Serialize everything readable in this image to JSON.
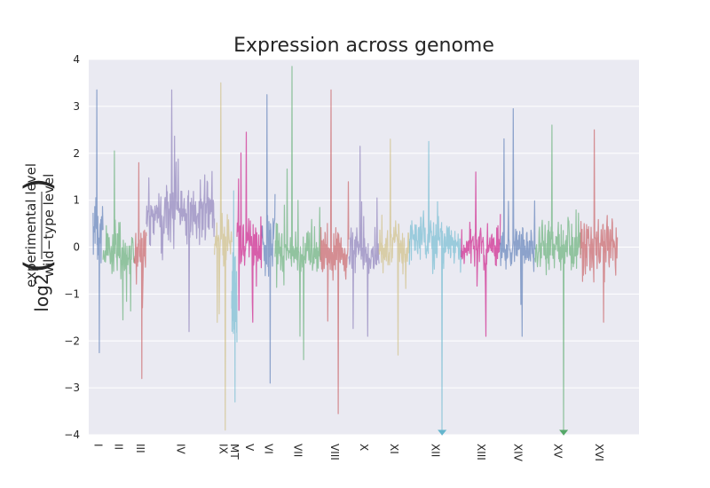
{
  "chart_data": {
    "type": "line",
    "title": "Expression across genome",
    "ylabel": {
      "prefix": "log2",
      "numerator": "experimental level",
      "denominator": "wild−type level"
    },
    "ylim": [
      -4,
      4
    ],
    "yticks": [
      -4,
      -3,
      -2,
      -1,
      0,
      1,
      2,
      3,
      4
    ],
    "ytick_labels": [
      "−4",
      "−3",
      "−2",
      "−1",
      "0",
      "1",
      "2",
      "3",
      "4"
    ],
    "grid": true,
    "legend": "none",
    "x_categories": [
      "I",
      "II",
      "III",
      "IV",
      "IX",
      "MT",
      "V",
      "VI",
      "VII",
      "VIII",
      "X",
      "XI",
      "XII",
      "XIII",
      "XIV",
      "XV",
      "XVI"
    ],
    "series": [
      {
        "chrom": "I",
        "color": "#4c72b0",
        "x_range": [
          0,
          0.23
        ],
        "mean": 0.4,
        "spread": 0.55,
        "peak_max": 3.35,
        "peak_min": -2.25
      },
      {
        "chrom": "II",
        "color": "#55a868",
        "x_range": [
          0.23,
          0.95
        ],
        "mean": -0.1,
        "spread": 0.45,
        "peak_max": 2.05,
        "peak_min": -1.55
      },
      {
        "chrom": "III",
        "color": "#c44e52",
        "x_range": [
          0.95,
          1.23
        ],
        "mean": -0.1,
        "spread": 0.45,
        "peak_max": 1.8,
        "peak_min": -2.8
      },
      {
        "chrom": "IV",
        "color": "#8172b2",
        "x_range": [
          1.23,
          2.8
        ],
        "mean": 0.75,
        "spread": 0.6,
        "peak_max": 3.35,
        "peak_min": -1.8
      },
      {
        "chrom": "IX",
        "color": "#ccb974",
        "x_range": [
          2.8,
          3.2
        ],
        "mean": 0.1,
        "spread": 0.5,
        "peak_max": 3.5,
        "peak_min": -3.9
      },
      {
        "chrom": "MT",
        "color": "#64b5cd",
        "x_range": [
          3.2,
          3.32
        ],
        "mean": -1.0,
        "spread": 1.0,
        "peak_max": 1.2,
        "peak_min": -3.3
      },
      {
        "chrom": "V",
        "color": "#c9007a",
        "x_range": [
          3.32,
          3.9
        ],
        "mean": 0.1,
        "spread": 0.5,
        "peak_max": 2.45,
        "peak_min": -1.6
      },
      {
        "chrom": "VI",
        "color": "#4c72b0",
        "x_range": [
          3.9,
          4.2
        ],
        "mean": 0.1,
        "spread": 0.6,
        "peak_max": 3.25,
        "peak_min": -2.9
      },
      {
        "chrom": "VII",
        "color": "#55a868",
        "x_range": [
          4.2,
          5.25
        ],
        "mean": -0.1,
        "spread": 0.5,
        "peak_max": 3.85,
        "peak_min": -2.4
      },
      {
        "chrom": "VIII",
        "color": "#c44e52",
        "x_range": [
          5.25,
          5.9
        ],
        "mean": -0.1,
        "spread": 0.5,
        "peak_max": 3.35,
        "peak_min": -3.55
      },
      {
        "chrom": "X",
        "color": "#8172b2",
        "x_range": [
          5.9,
          6.6
        ],
        "mean": -0.1,
        "spread": 0.5,
        "peak_max": 2.15,
        "peak_min": -1.9
      },
      {
        "chrom": "XI",
        "color": "#ccb974",
        "x_range": [
          6.6,
          7.3
        ],
        "mean": 0.0,
        "spread": 0.5,
        "peak_max": 2.3,
        "peak_min": -2.3
      },
      {
        "chrom": "XII",
        "color": "#64b5cd",
        "x_range": [
          7.3,
          8.5
        ],
        "mean": 0.1,
        "spread": 0.5,
        "peak_max": 2.25,
        "peak_min": -4.0
      },
      {
        "chrom": "XIII",
        "color": "#c9007a",
        "x_range": [
          8.5,
          9.4
        ],
        "mean": 0.0,
        "spread": 0.45,
        "peak_max": 1.6,
        "peak_min": -1.9
      },
      {
        "chrom": "XIV",
        "color": "#4c72b0",
        "x_range": [
          9.4,
          10.2
        ],
        "mean": 0.0,
        "spread": 0.5,
        "peak_max": 2.95,
        "peak_min": -1.9
      },
      {
        "chrom": "XV",
        "color": "#55a868",
        "x_range": [
          10.2,
          11.25
        ],
        "mean": 0.0,
        "spread": 0.5,
        "peak_max": 2.6,
        "peak_min": -4.0
      },
      {
        "chrom": "XVI",
        "color": "#c44e52",
        "x_range": [
          11.25,
          12.1
        ],
        "mean": 0.0,
        "spread": 0.5,
        "peak_max": 2.5,
        "peak_min": -1.6
      }
    ]
  }
}
